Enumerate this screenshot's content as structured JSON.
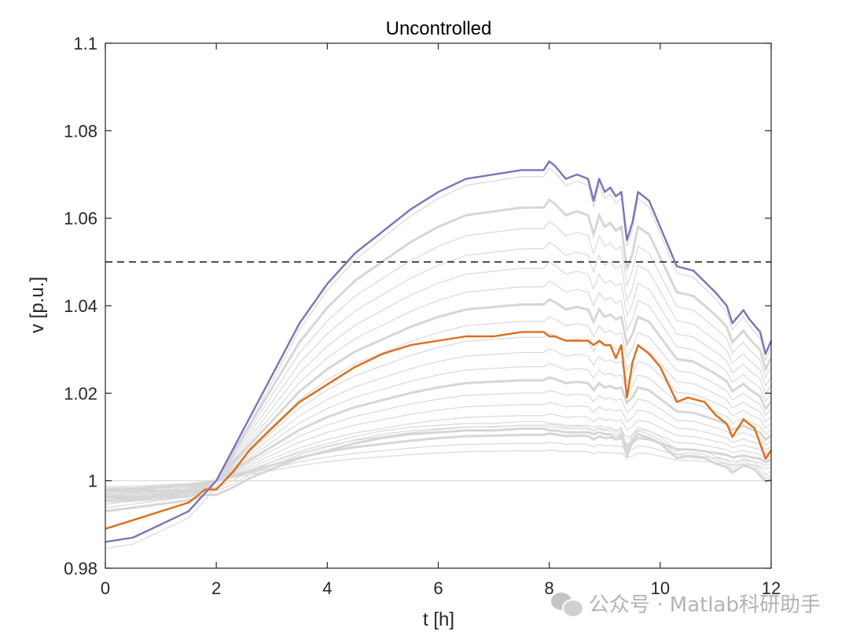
{
  "chart_data": {
    "type": "line",
    "title": "Uncontrolled",
    "xlabel": "t [h]",
    "ylabel": "v [p.u.]",
    "xlim": [
      0,
      12
    ],
    "ylim": [
      0.98,
      1.1
    ],
    "xticks": [
      0,
      2,
      4,
      6,
      8,
      10,
      12
    ],
    "yticks": [
      0.98,
      1,
      1.02,
      1.04,
      1.06,
      1.08,
      1.1
    ],
    "ytick_labels": [
      "0.98",
      "1",
      "1.02",
      "1.04",
      "1.06",
      "1.08",
      "1.1"
    ],
    "grid": false,
    "limit_line": {
      "y": 1.05,
      "style": "dashed",
      "color": "#000000"
    },
    "highlight_series": [
      {
        "color": "#7b72bd",
        "x": [
          0,
          0.5,
          1,
          1.5,
          2,
          2.5,
          3,
          3.5,
          4,
          4.5,
          5,
          5.5,
          6,
          6.5,
          7,
          7.5,
          7.9,
          8,
          8.1,
          8.3,
          8.5,
          8.7,
          8.8,
          8.9,
          9.0,
          9.1,
          9.2,
          9.3,
          9.4,
          9.5,
          9.6,
          9.8,
          10.0,
          10.3,
          10.6,
          11.0,
          11.2,
          11.3,
          11.5,
          11.6,
          11.8,
          11.9,
          12
        ],
        "values": [
          0.986,
          0.987,
          0.99,
          0.993,
          1.0,
          1.012,
          1.024,
          1.036,
          1.045,
          1.052,
          1.057,
          1.062,
          1.066,
          1.069,
          1.07,
          1.071,
          1.071,
          1.073,
          1.072,
          1.069,
          1.07,
          1.069,
          1.064,
          1.069,
          1.066,
          1.067,
          1.065,
          1.066,
          1.055,
          1.059,
          1.066,
          1.064,
          1.058,
          1.049,
          1.048,
          1.043,
          1.04,
          1.036,
          1.039,
          1.037,
          1.034,
          1.029,
          1.032
        ]
      },
      {
        "color": "#e06c16",
        "x": [
          0,
          0.5,
          1,
          1.5,
          1.8,
          2,
          2.3,
          2.6,
          3,
          3.5,
          4,
          4.5,
          5,
          5.5,
          6,
          6.5,
          7,
          7.5,
          7.9,
          8,
          8.1,
          8.3,
          8.5,
          8.7,
          8.8,
          8.9,
          9.0,
          9.1,
          9.2,
          9.3,
          9.4,
          9.5,
          9.6,
          9.8,
          10.0,
          10.3,
          10.5,
          10.8,
          11.0,
          11.2,
          11.3,
          11.5,
          11.7,
          11.9,
          12
        ],
        "values": [
          0.989,
          0.991,
          0.993,
          0.995,
          0.998,
          0.998,
          1.002,
          1.007,
          1.012,
          1.018,
          1.022,
          1.026,
          1.029,
          1.031,
          1.032,
          1.033,
          1.033,
          1.034,
          1.034,
          1.033,
          1.033,
          1.032,
          1.032,
          1.032,
          1.031,
          1.032,
          1.031,
          1.031,
          1.028,
          1.031,
          1.019,
          1.027,
          1.031,
          1.029,
          1.026,
          1.018,
          1.019,
          1.018,
          1.015,
          1.013,
          1.01,
          1.014,
          1.012,
          1.005,
          1.007
        ]
      }
    ]
  },
  "watermark": {
    "icon": "wechat-icon",
    "text": "公众号 · Matlab科研助手"
  }
}
